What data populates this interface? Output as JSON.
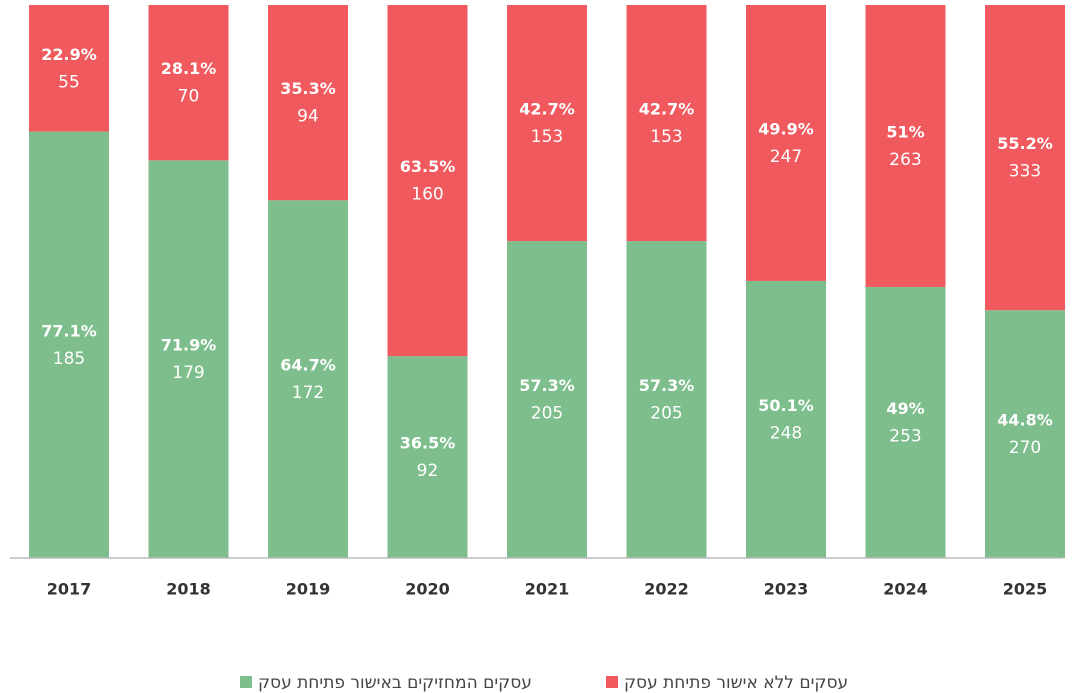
{
  "chart_data": {
    "type": "stacked_bar_100",
    "categories": [
      "2017",
      "2018",
      "2019",
      "2020",
      "2021",
      "2022",
      "2023",
      "2024",
      "2025"
    ],
    "ylim": [
      0,
      100
    ],
    "series": [
      {
        "name": "עסקים המחזיקים באישור פתיחת עסק",
        "color": "#7dbe8c",
        "values": [
          77.1,
          71.9,
          64.7,
          36.5,
          57.3,
          57.3,
          50.1,
          49,
          44.8
        ],
        "value_labels": [
          "77.1%",
          "71.9%",
          "64.7%",
          "36.5%",
          "57.3%",
          "57.3%",
          "50.1%",
          "49%",
          "44.8%"
        ],
        "counts": [
          185,
          179,
          172,
          92,
          205,
          205,
          248,
          253,
          270
        ]
      },
      {
        "name": "עסקים ללא אישור פתיחת עסק",
        "color": "#f05a5e",
        "values": [
          22.9,
          28.1,
          35.3,
          63.5,
          42.7,
          42.7,
          49.9,
          51,
          55.2
        ],
        "value_labels": [
          "22.9%",
          "28.1%",
          "35.3%",
          "63.5%",
          "42.7%",
          "42.7%",
          "49.9%",
          "51%",
          "55.2%"
        ],
        "counts": [
          55,
          70,
          94,
          160,
          153,
          153,
          247,
          263,
          333
        ]
      }
    ]
  }
}
